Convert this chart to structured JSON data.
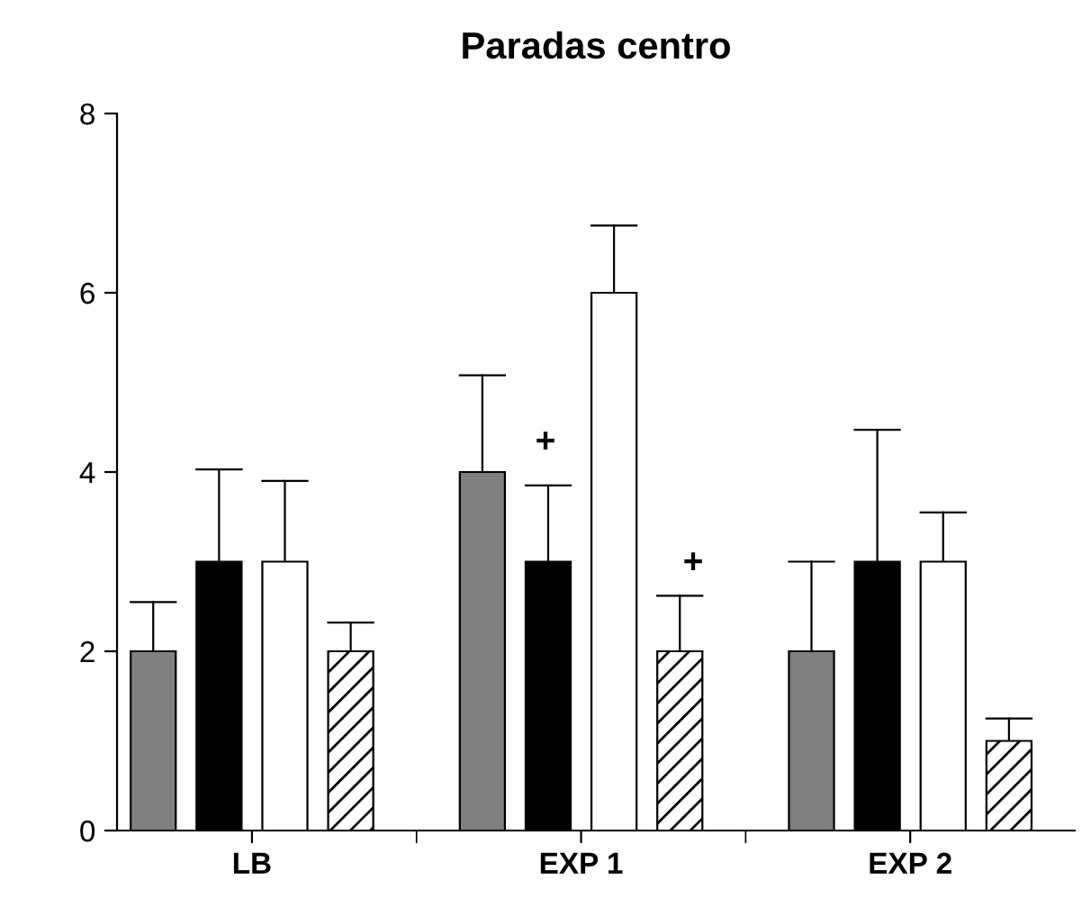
{
  "chart_data": {
    "type": "bar",
    "title": "Paradas centro",
    "categories": [
      "LB",
      "EXP 1",
      "EXP 2"
    ],
    "series": [
      {
        "color": "#808080",
        "values": [
          2,
          4,
          2
        ],
        "errors": [
          [
            2,
            2.55
          ],
          [
            4,
            5.08
          ],
          [
            2,
            3.0
          ]
        ]
      },
      {
        "color": "#000000",
        "values": [
          3,
          3,
          3
        ],
        "errors": [
          [
            3,
            4.03
          ],
          [
            3,
            3.85
          ],
          [
            3,
            4.47
          ]
        ]
      },
      {
        "color": "#ffffff",
        "values": [
          3,
          6,
          3
        ],
        "errors": [
          [
            3,
            3.9
          ],
          [
            6,
            6.75
          ],
          [
            3,
            3.55
          ]
        ]
      },
      {
        "color": "#ffffff",
        "values": [
          2,
          2,
          1
        ],
        "errors": [
          [
            2,
            2.32
          ],
          [
            2,
            2.62
          ],
          [
            1,
            1.25
          ]
        ]
      }
    ],
    "annotations": [
      "+",
      "+"
    ],
    "ylim": [
      0,
      8
    ],
    "yticks": [
      0,
      2,
      4,
      6,
      8
    ],
    "grid": false,
    "legend": false
  }
}
